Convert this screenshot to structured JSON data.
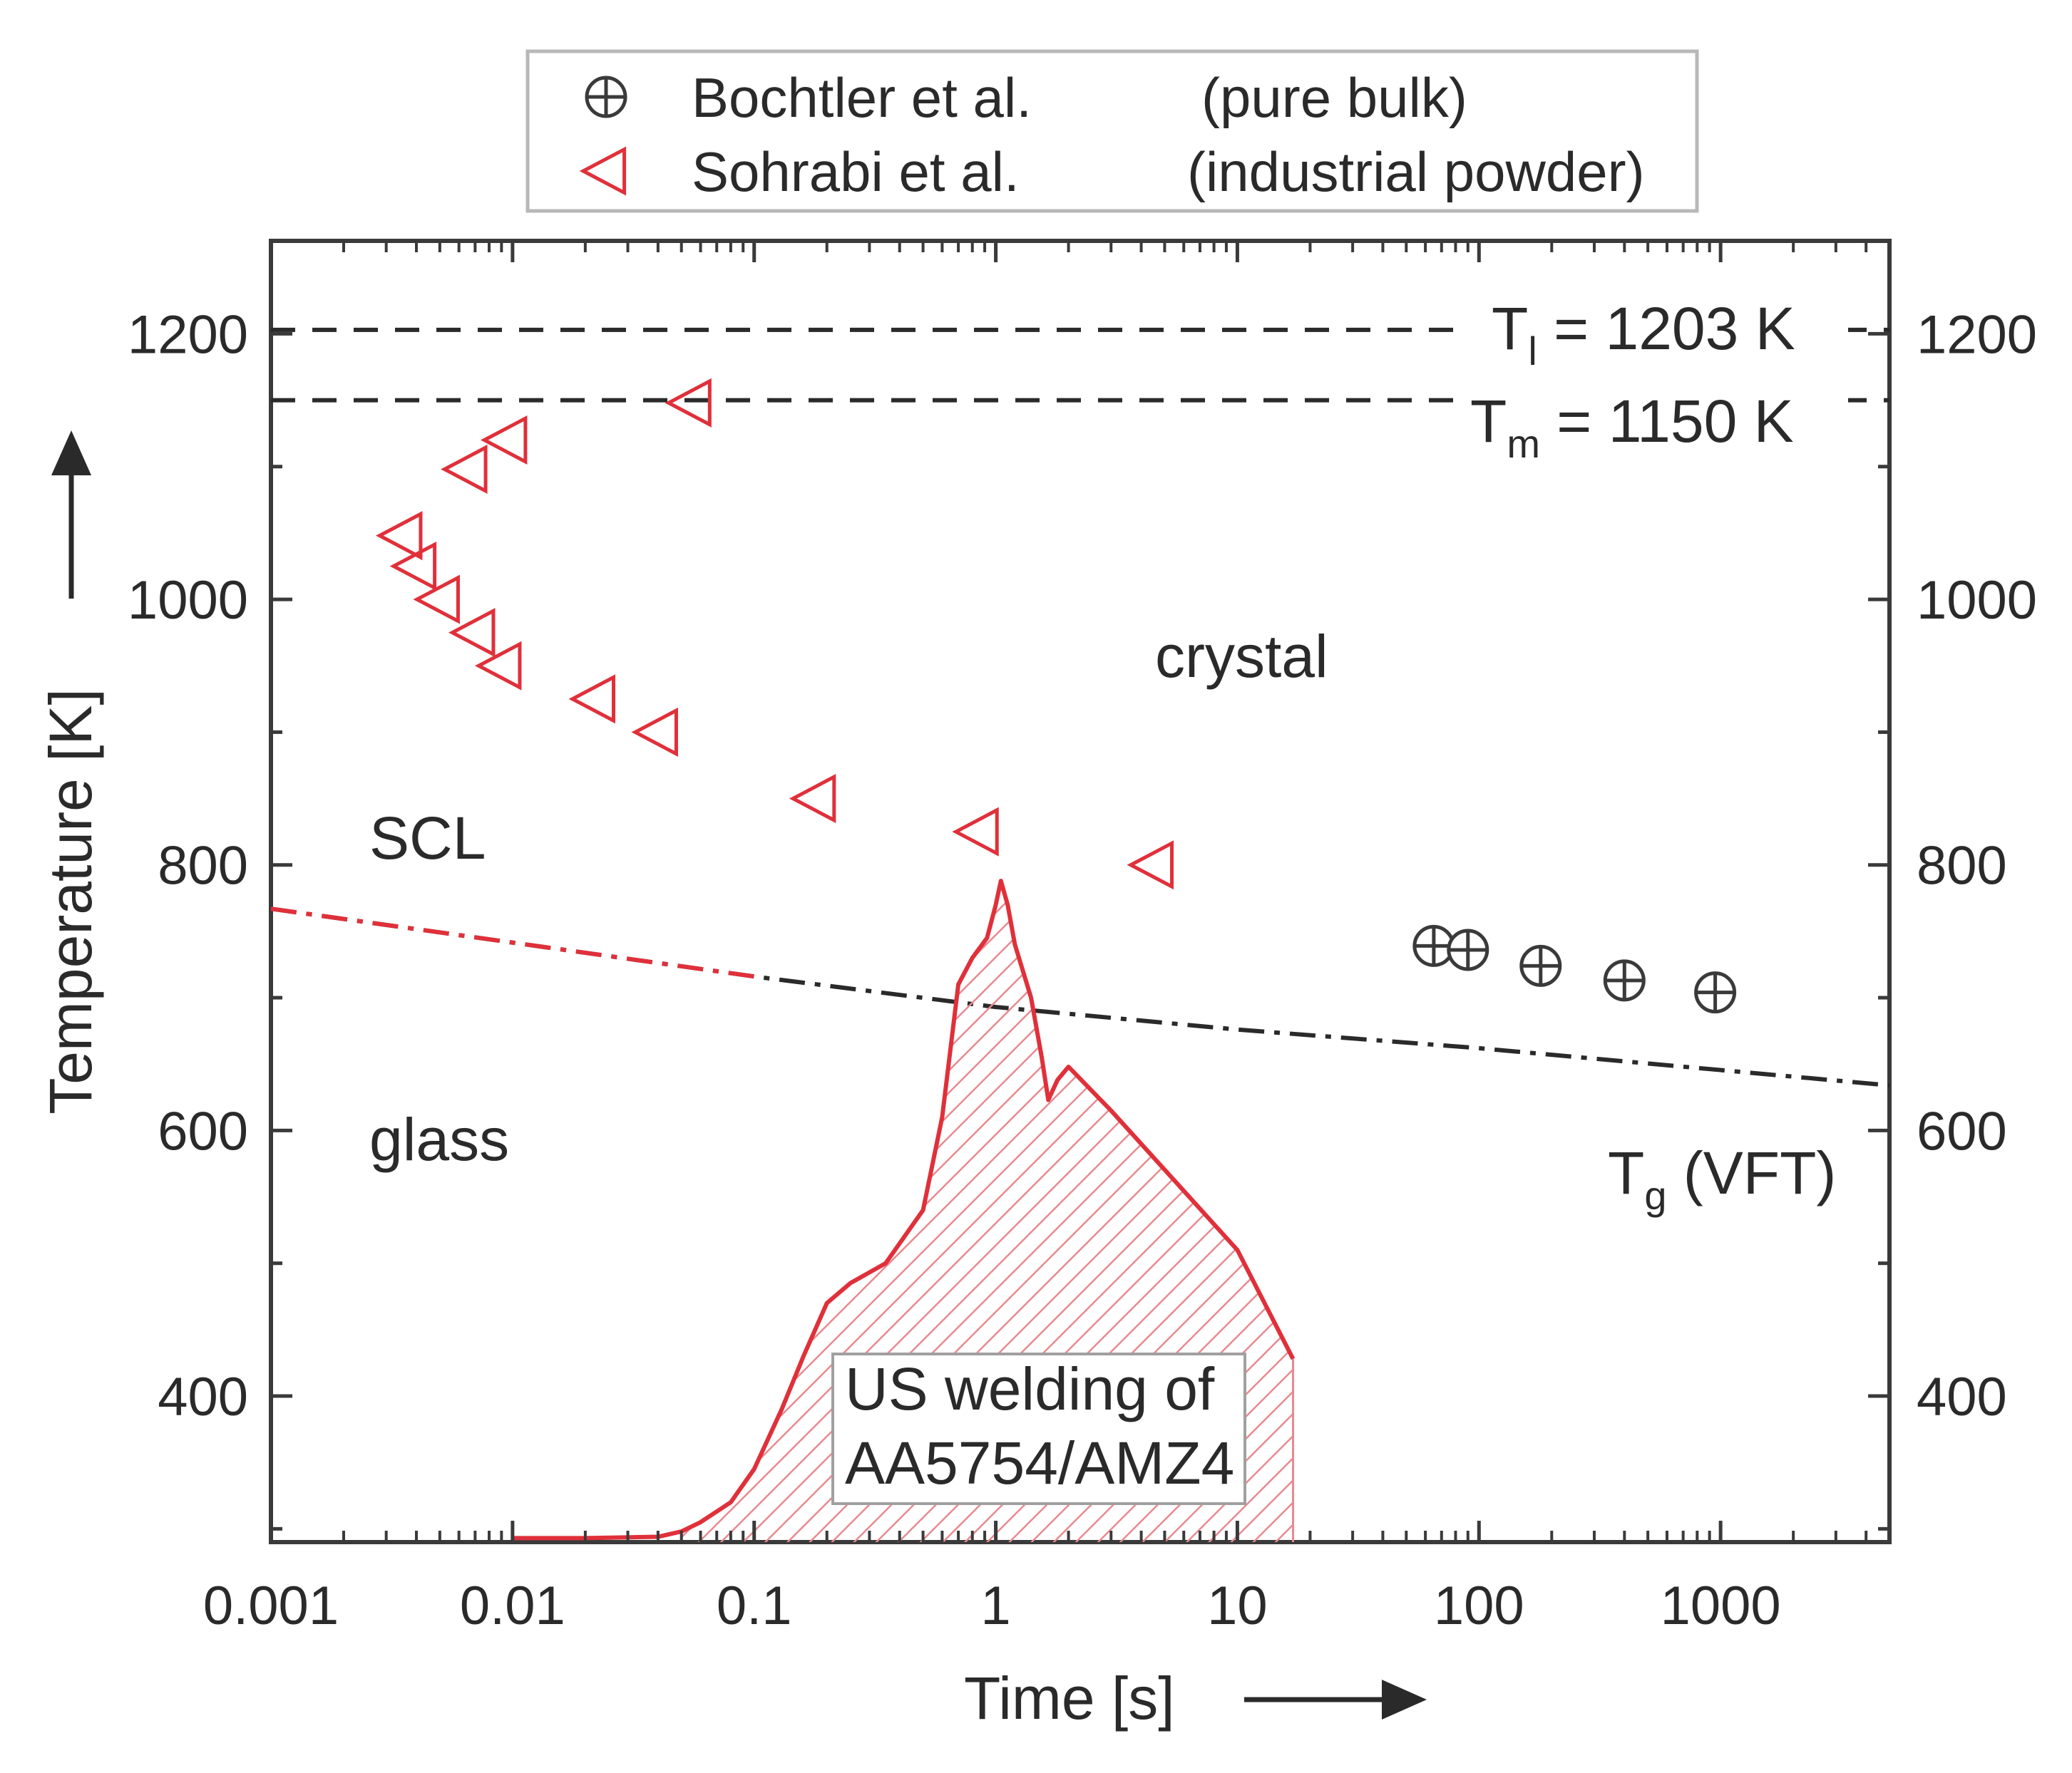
{
  "chart_data": {
    "type": "scatter",
    "xlabel": "Time [s]",
    "ylabel": "Temperature [K]",
    "xscale": "log",
    "xlim": [
      0.001,
      5000
    ],
    "ylim": [
      290,
      1270
    ],
    "x_ticks": [
      0.001,
      0.01,
      0.1,
      1,
      10,
      100,
      1000
    ],
    "x_tick_labels": [
      "0.001",
      "0.01",
      "0.1",
      "1",
      "10",
      "100",
      "1000"
    ],
    "y_ticks": [
      400,
      800,
      1000,
      1200
    ],
    "y_tick_labels": [
      "400",
      "800",
      "1000",
      "1200"
    ],
    "y_tick_labels_partial": [
      {
        "value": 600,
        "label": "600"
      }
    ],
    "y_right_ticks": [
      400,
      600,
      800,
      1000,
      1200
    ],
    "y_right_tick_labels": [
      "400",
      "600",
      "800",
      "1000",
      "1200"
    ],
    "legend": {
      "placement": "top-center, above plot",
      "entries": [
        {
          "marker": "circle-plus",
          "name": "Bochtler et al.",
          "note": "(pure bulk)",
          "color": "#3a3a3a"
        },
        {
          "marker": "triangle-left",
          "name": "Sohrabi et al.",
          "note": "(industrial powder)",
          "color": "#e0303a"
        }
      ]
    },
    "series": [
      {
        "name": "Bochtler et al.",
        "kind": "scatter",
        "marker": "circle-plus",
        "color": "#3a3a3a",
        "points": [
          [
            65,
            739
          ],
          [
            90,
            736
          ],
          [
            180,
            724
          ],
          [
            400,
            713
          ],
          [
            950,
            704
          ]
        ]
      },
      {
        "name": "Sohrabi et al.",
        "kind": "scatter",
        "marker": "triangle-left",
        "color": "#e0303a",
        "points": [
          [
            0.0035,
            1048
          ],
          [
            0.004,
            1025
          ],
          [
            0.005,
            1000
          ],
          [
            0.007,
            975
          ],
          [
            0.009,
            950
          ],
          [
            0.0065,
            1098
          ],
          [
            0.0095,
            1120
          ],
          [
            0.055,
            1148
          ],
          [
            0.022,
            925
          ],
          [
            0.04,
            900
          ],
          [
            0.18,
            850
          ],
          [
            0.85,
            825
          ],
          [
            4.5,
            800
          ]
        ]
      },
      {
        "name": "Tg (VFT)",
        "kind": "line",
        "style": "dash-dot",
        "color": "#2a2a2a",
        "segment_color_low_t": "#e0303a",
        "points": [
          [
            0.001,
            767
          ],
          [
            0.1,
            716
          ],
          [
            1,
            693
          ],
          [
            10,
            676
          ],
          [
            100,
            662
          ],
          [
            5000,
            634
          ]
        ]
      },
      {
        "name": "T_l",
        "kind": "hline",
        "style": "dashed",
        "color": "#2a2a2a",
        "value": 1203
      },
      {
        "name": "T_m",
        "kind": "hline",
        "style": "dashed",
        "color": "#2a2a2a",
        "value": 1150
      },
      {
        "name": "US welding of AA5754/AMZ4",
        "kind": "area-line",
        "color": "#e0303a",
        "fill": "hatched",
        "points": [
          [
            0.01,
            293
          ],
          [
            0.02,
            293
          ],
          [
            0.04,
            294
          ],
          [
            0.05,
            298
          ],
          [
            0.06,
            305
          ],
          [
            0.08,
            320
          ],
          [
            0.1,
            345
          ],
          [
            0.13,
            390
          ],
          [
            0.16,
            430
          ],
          [
            0.2,
            470
          ],
          [
            0.25,
            485
          ],
          [
            0.35,
            500
          ],
          [
            0.5,
            540
          ],
          [
            0.6,
            610
          ],
          [
            0.7,
            710
          ],
          [
            0.8,
            730
          ],
          [
            0.92,
            745
          ],
          [
            1.0,
            770
          ],
          [
            1.05,
            788
          ],
          [
            1.12,
            770
          ],
          [
            1.2,
            740
          ],
          [
            1.4,
            700
          ],
          [
            1.55,
            655
          ],
          [
            1.65,
            623
          ],
          [
            1.8,
            638
          ],
          [
            2.0,
            648
          ],
          [
            3.0,
            615
          ],
          [
            10.0,
            510
          ],
          [
            17.0,
            428
          ]
        ]
      }
    ],
    "annotations": {
      "tl_label": "T",
      "tl_sub": "l",
      "tl_value": " = 1203 K",
      "tm_label": "T",
      "tm_sub": "m",
      "tm_value": " = 1150 K",
      "tg_label": "T",
      "tg_sub": "g",
      "tg_value": " (VFT)",
      "region_crystal": "crystal",
      "region_scl": "SCL",
      "region_glass": "glass",
      "welding_line1": "US welding of",
      "welding_line2": "AA5754/AMZ4"
    }
  }
}
